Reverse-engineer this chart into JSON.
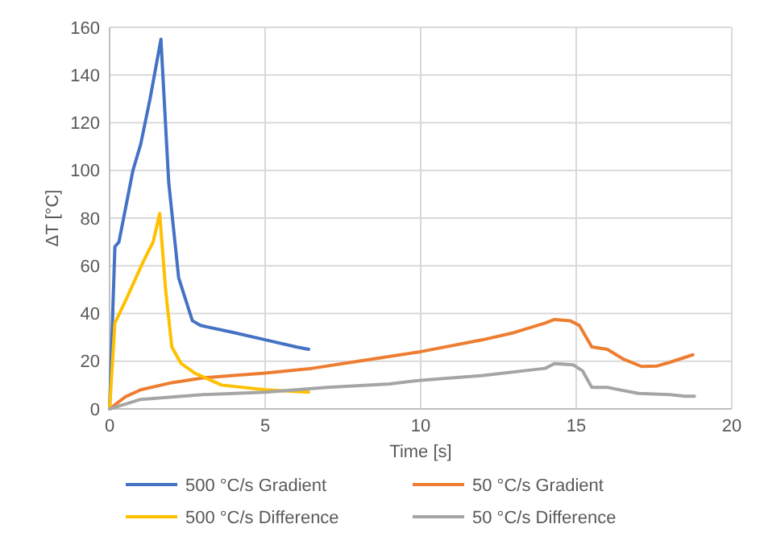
{
  "chart_data": {
    "type": "line",
    "xlabel": "Time [s]",
    "ylabel": "ΔT [°C]",
    "xlim": [
      0,
      20
    ],
    "xticks": [
      0,
      5,
      10,
      15,
      20
    ],
    "ylim": [
      0,
      160
    ],
    "yticks": [
      0,
      20,
      40,
      60,
      80,
      100,
      120,
      140,
      160
    ],
    "grid": true,
    "legend": "bottom",
    "marker": "none",
    "line_style": "solid",
    "series": [
      {
        "name": "500 °C/s Gradient",
        "color": "#4472c4",
        "x": [
          0,
          0.17,
          0.3,
          0.75,
          1.0,
          1.3,
          1.65,
          1.9,
          2.22,
          2.66,
          2.92,
          4,
          5,
          6,
          6.4
        ],
        "values": [
          0,
          68,
          70,
          100,
          111,
          130,
          155,
          95,
          55,
          37,
          35,
          32,
          29,
          26,
          25
        ]
      },
      {
        "name": "50 °C/s Gradient",
        "color": "#ed7d31",
        "x": [
          0,
          0.5,
          1,
          2,
          3,
          5,
          6.5,
          8,
          10,
          12,
          13,
          14,
          14.3,
          14.8,
          15.1,
          15.5,
          16,
          16.5,
          17.1,
          17.6,
          18,
          18.75
        ],
        "values": [
          0,
          5,
          8,
          11,
          13,
          15,
          17,
          20,
          24,
          29,
          32,
          36,
          37.5,
          37,
          35,
          26,
          25,
          21,
          17.8,
          18,
          19.5,
          22.7
        ]
      },
      {
        "name": "500 °C/s Difference",
        "color": "#ffc000",
        "x": [
          0,
          0.17,
          0.5,
          1.09,
          1.4,
          1.61,
          1.8,
          2.0,
          2.3,
          2.74,
          3.6,
          5,
          6.4
        ],
        "values": [
          0,
          36,
          45,
          62,
          70,
          82,
          50,
          26,
          19,
          15,
          10,
          8,
          7
        ]
      },
      {
        "name": "50 °C/s Difference",
        "color": "#a5a5a5",
        "x": [
          0,
          0.5,
          1,
          2,
          3,
          5,
          7,
          9,
          10,
          12,
          14,
          14.3,
          14.9,
          15.2,
          15.5,
          16,
          17,
          18,
          18.5,
          18.8
        ],
        "values": [
          0,
          2,
          4,
          5,
          6,
          7,
          9,
          10.5,
          12,
          14,
          17,
          19,
          18.5,
          16,
          9,
          9,
          6.5,
          6,
          5.3,
          5.3
        ]
      }
    ]
  }
}
